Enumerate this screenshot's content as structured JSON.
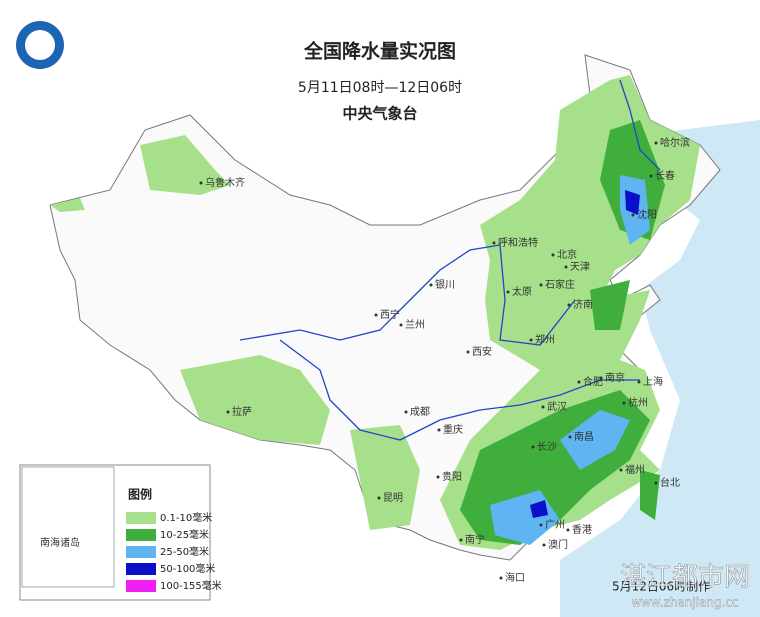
{
  "header": {
    "title": "全国降水量实况图",
    "subtitle": "5月11日08时—12日06时",
    "agency": "中央气象台"
  },
  "cities": [
    "乌鲁木齐",
    "哈尔滨",
    "长春",
    "沈阳",
    "呼和浩特",
    "北京",
    "天津",
    "石家庄",
    "太原",
    "银川",
    "济南",
    "西宁",
    "兰州",
    "郑州",
    "西安",
    "合肥",
    "南京",
    "上海",
    "武汉",
    "杭州",
    "拉萨",
    "成都",
    "重庆",
    "长沙",
    "南昌",
    "福州",
    "贵阳",
    "昆明",
    "台北",
    "南宁",
    "广州",
    "香港",
    "澳门",
    "海口"
  ],
  "legend": {
    "title": "图例",
    "items": [
      {
        "label": "0.1-10毫米",
        "color": "#a6e08a"
      },
      {
        "label": "10-25毫米",
        "color": "#3fae3c"
      },
      {
        "label": "25-50毫米",
        "color": "#5fb4f2"
      },
      {
        "label": "50-100毫米",
        "color": "#0a10c8"
      },
      {
        "label": "100-155毫米",
        "color": "#f01ef0"
      }
    ]
  },
  "inset": {
    "label": "南海诸岛"
  },
  "footer": {
    "note": "5月12日06时制作"
  },
  "watermark": {
    "name": "湛江都市网",
    "url": "www.zhanjiang.cc"
  }
}
